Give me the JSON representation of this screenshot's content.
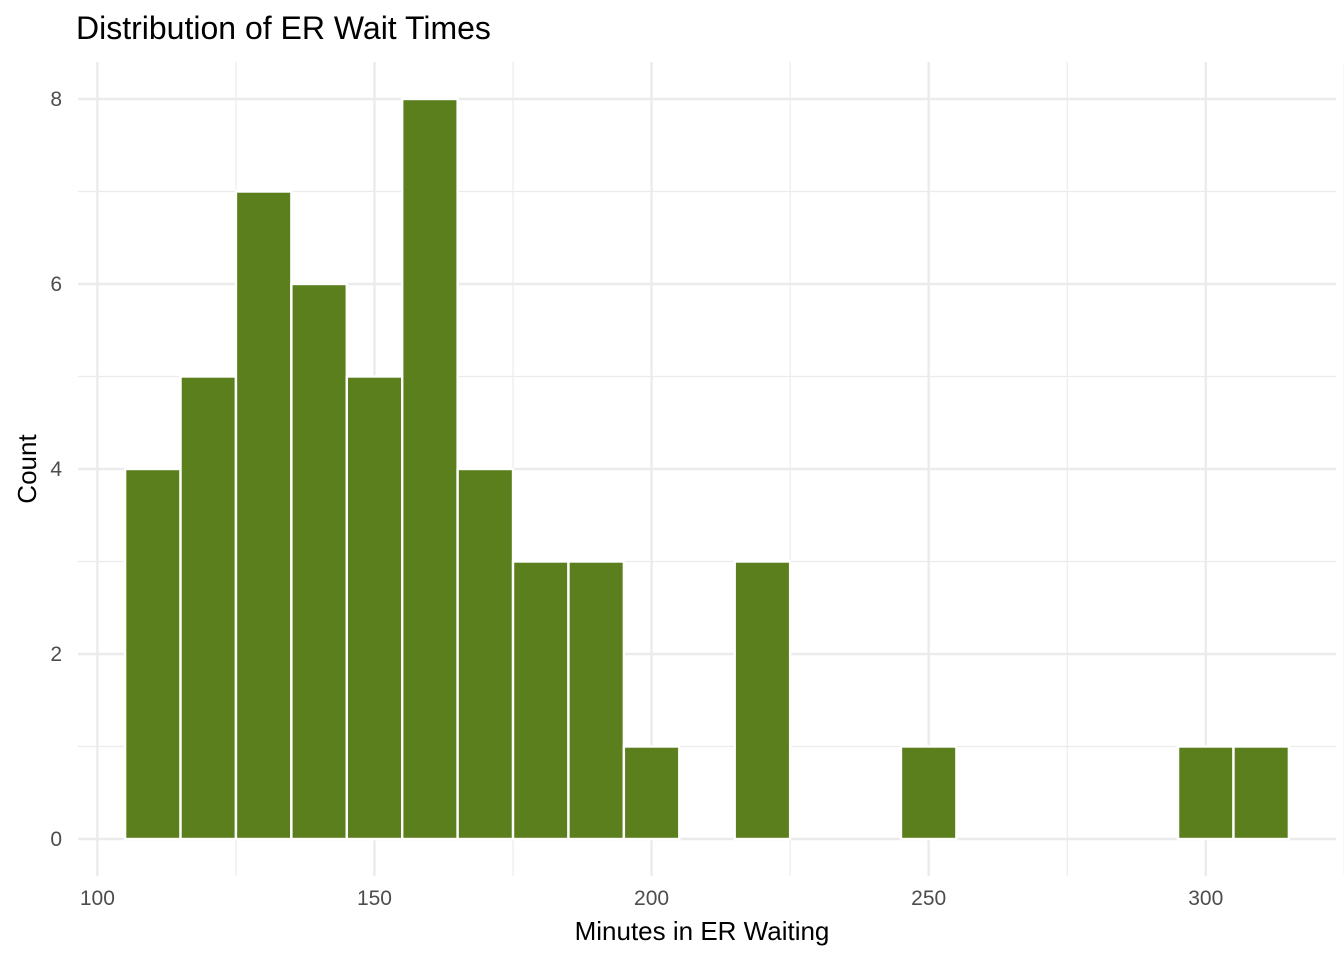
{
  "chart_data": {
    "type": "bar",
    "subtype": "histogram",
    "title": "Distribution of ER Wait Times",
    "xlabel": "Minutes in ER Waiting",
    "ylabel": "Count",
    "xlim": [
      96.5,
      323.5
    ],
    "ylim": [
      -0.4,
      8.4
    ],
    "x_ticks": [
      100,
      150,
      200,
      250,
      300
    ],
    "x_tick_labels": [
      "100",
      "150",
      "200",
      "250",
      "300"
    ],
    "y_ticks": [
      0,
      2,
      4,
      6,
      8
    ],
    "y_tick_labels": [
      "0",
      "2",
      "4",
      "6",
      "8"
    ],
    "x_minor_ticks": [
      125,
      175,
      225,
      275,
      325
    ],
    "y_minor_ticks": [
      1,
      3,
      5,
      7
    ],
    "bin_width": 10,
    "bins": [
      {
        "x0": 105,
        "x1": 115,
        "count": 4
      },
      {
        "x0": 115,
        "x1": 125,
        "count": 5
      },
      {
        "x0": 125,
        "x1": 135,
        "count": 7
      },
      {
        "x0": 135,
        "x1": 145,
        "count": 6
      },
      {
        "x0": 145,
        "x1": 155,
        "count": 5
      },
      {
        "x0": 155,
        "x1": 165,
        "count": 8
      },
      {
        "x0": 165,
        "x1": 175,
        "count": 4
      },
      {
        "x0": 175,
        "x1": 185,
        "count": 3
      },
      {
        "x0": 185,
        "x1": 195,
        "count": 3
      },
      {
        "x0": 195,
        "x1": 205,
        "count": 1
      },
      {
        "x0": 205,
        "x1": 215,
        "count": 0
      },
      {
        "x0": 215,
        "x1": 225,
        "count": 3
      },
      {
        "x0": 225,
        "x1": 235,
        "count": 0
      },
      {
        "x0": 235,
        "x1": 245,
        "count": 0
      },
      {
        "x0": 245,
        "x1": 255,
        "count": 1
      },
      {
        "x0": 255,
        "x1": 265,
        "count": 0
      },
      {
        "x0": 265,
        "x1": 275,
        "count": 0
      },
      {
        "x0": 275,
        "x1": 285,
        "count": 0
      },
      {
        "x0": 285,
        "x1": 295,
        "count": 0
      },
      {
        "x0": 295,
        "x1": 305,
        "count": 1
      },
      {
        "x0": 305,
        "x1": 315,
        "count": 1
      }
    ],
    "bar_color": "#5c7f1e",
    "bar_outline_color": "#ffffff",
    "grid": true,
    "legend": "none"
  }
}
